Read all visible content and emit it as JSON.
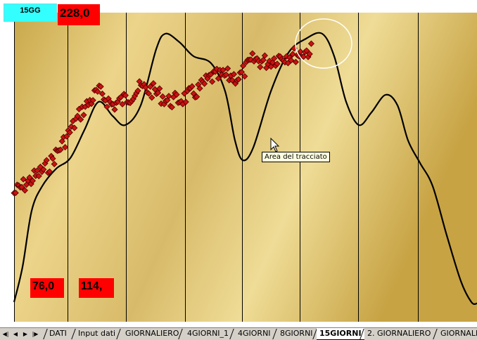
{
  "chart": {
    "badge_label": "15GG",
    "max_value_label": "228,0",
    "value_box_1": "76,0",
    "value_box_2": "114,",
    "tooltip": "Area del tracciato",
    "background_gradient": [
      "#c9a84a",
      "#ecd48a",
      "#d8bb6a",
      "#efdc96",
      "#c7a344"
    ],
    "marker_color": "#cc1111",
    "line_color": "#000000",
    "highlight_circle_color": "#ffffff"
  },
  "sheet_tabs": {
    "nav_icons": [
      "first-sheet-icon",
      "prev-sheet-icon",
      "next-sheet-icon",
      "last-sheet-icon"
    ],
    "tabs": [
      {
        "label": "DATI",
        "active": false
      },
      {
        "label": "Input dati",
        "active": false
      },
      {
        "label": "GIORNALIERO",
        "active": false
      },
      {
        "label": "4GIORNI_1",
        "active": false
      },
      {
        "label": "4GIORNI",
        "active": false
      },
      {
        "label": "8GIORNI",
        "active": false
      },
      {
        "label": "15GIORNI",
        "active": true
      },
      {
        "label": "2. GIORNALIERO",
        "active": false
      },
      {
        "label": "GIORNALIE",
        "active": false
      }
    ]
  }
}
